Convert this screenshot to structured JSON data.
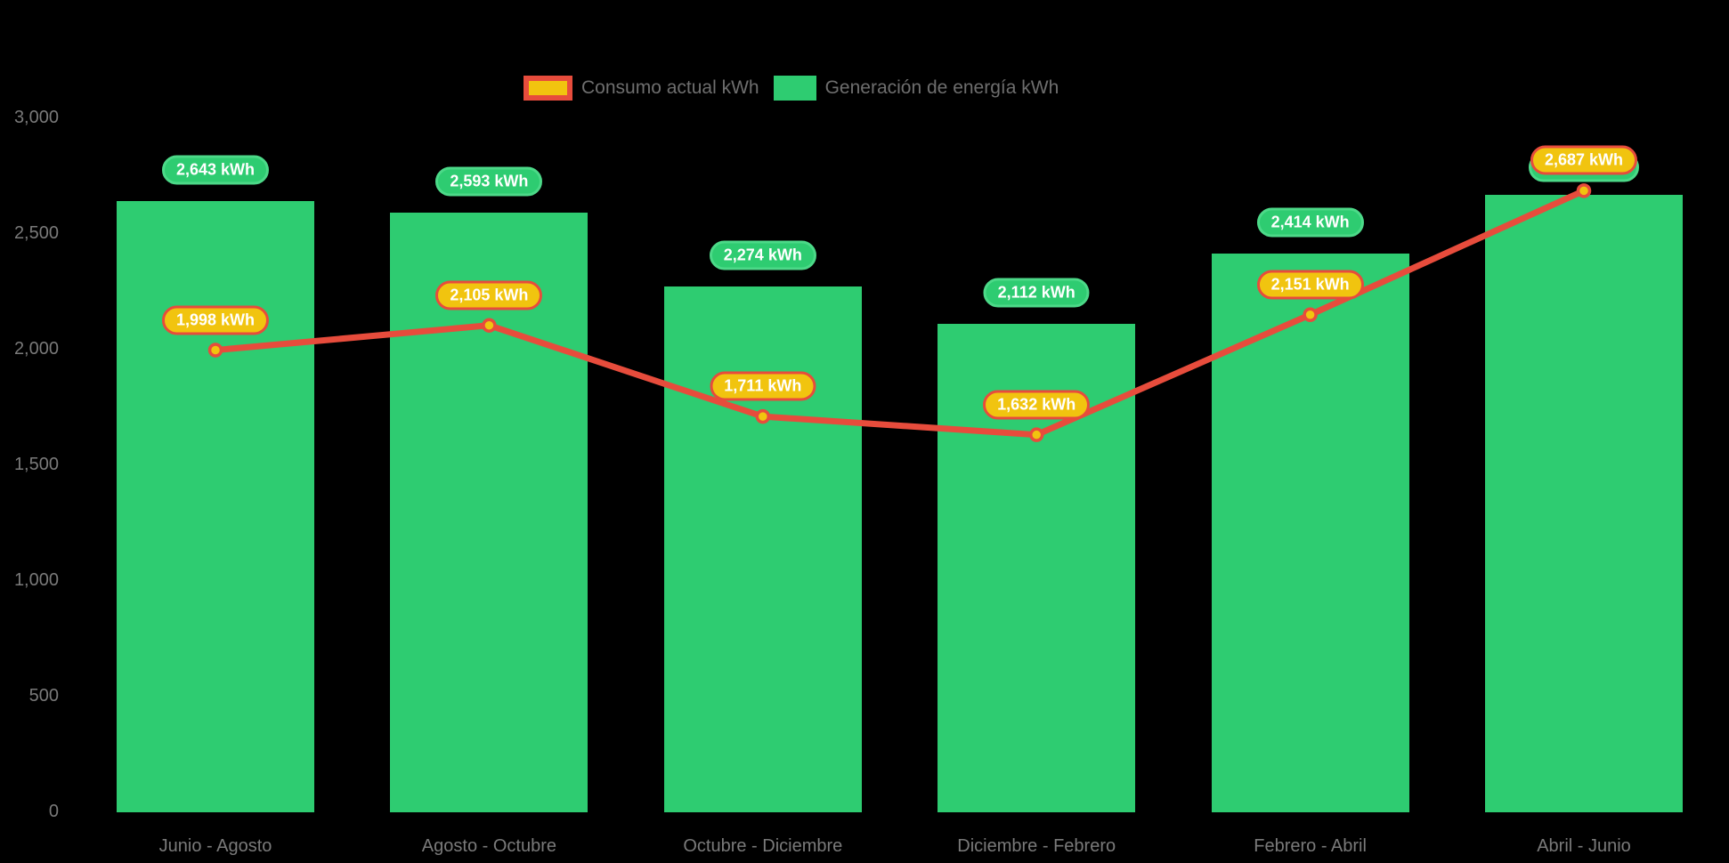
{
  "chart": {
    "background_color": "#000000",
    "axis_text_color": "#7a7a7a",
    "legend_text_color": "#6e6e6e"
  },
  "chart_data": {
    "type": "combo_bar_line",
    "title": "",
    "categories": [
      "Junio - Agosto",
      "Agosto - Octubre",
      "Octubre - Diciembre",
      "Diciembre - Febrero",
      "Febrero - Abril",
      "Abril - Junio"
    ],
    "series": [
      {
        "name": "Consumo actual kWh",
        "type": "line",
        "line_color": "#e74c3c",
        "marker_fill": "#f1c40f",
        "marker_stroke": "#e74c3c",
        "label_pill_fill": "#f1c40f",
        "label_pill_border": "#e74c3c",
        "values": [
          1998,
          2105,
          1711,
          1632,
          2151,
          2687
        ],
        "point_labels": [
          "1,998 kWh",
          "2,105 kWh",
          "1,711 kWh",
          "1,632 kWh",
          "2,151 kWh",
          "2,687 kWh"
        ]
      },
      {
        "name": "Generación de energía kWh",
        "type": "bar",
        "bar_color": "#2ecc71",
        "label_pill_fill": "#2ecc71",
        "label_pill_border": "#4cd988",
        "values": [
          2643,
          2593,
          2274,
          2112,
          2414,
          2669
        ],
        "point_labels": [
          "2,643 kWh",
          "2,593 kWh",
          "2,274 kWh",
          "2,112 kWh",
          "2,414 kWh",
          ""
        ]
      }
    ],
    "y_axis": {
      "tick_labels": [
        "3,000",
        "2,500",
        "2,000",
        "1,500",
        "1,000",
        "500",
        "0"
      ],
      "tick_values": [
        3000,
        2500,
        2000,
        1500,
        1000,
        500,
        0
      ],
      "range": [
        0,
        3000
      ],
      "gridlines": false
    },
    "x_axis": {
      "labels": [
        "Junio - Agosto",
        "Agosto - Octubre",
        "Octubre - Diciembre",
        "Diciembre - Febrero",
        "Febrero - Abril",
        "Abril - Junio"
      ]
    },
    "legend_position": "top-center"
  }
}
